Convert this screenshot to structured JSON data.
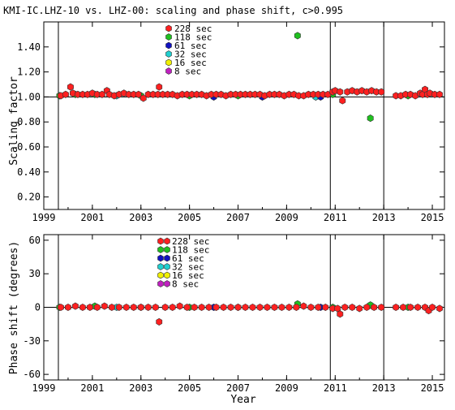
{
  "title": "KMI-IC.LHZ-10 vs. LHZ-00: scaling and phase shift, c>0.995",
  "legend": [
    {
      "label": "228 sec",
      "color": "#ff2020"
    },
    {
      "label": "118 sec",
      "color": "#20c020"
    },
    {
      "label": "61 sec",
      "color": "#1010c0"
    },
    {
      "label": "32 sec",
      "color": "#20d0d0"
    },
    {
      "label": "16 sec",
      "color": "#f0f000"
    },
    {
      "label": "8 sec",
      "color": "#c020c0"
    }
  ],
  "chart_data": [
    {
      "type": "scatter",
      "ylabel": "Scaling factor",
      "xlabel": "",
      "xlim": [
        1999,
        2015.5
      ],
      "ylim": [
        0.1,
        1.6
      ],
      "xticks": [
        "1999",
        "2001",
        "2003",
        "2005",
        "2007",
        "2009",
        "2011",
        "2013",
        "2015"
      ],
      "yticks": [
        "0.20",
        "0.40",
        "0.60",
        "0.80",
        "1.00",
        "1.20",
        "1.40"
      ],
      "yticks_values": [
        0.2,
        0.4,
        0.6,
        0.8,
        1.0,
        1.2,
        1.4
      ],
      "reference_line": 1.0,
      "vertical_lines": [
        1999.6,
        2010.8,
        2013.0
      ],
      "series": [
        {
          "name": "228 sec",
          "color": "#ff2020",
          "x": [
            1999.7,
            1999.9,
            2000.1,
            2000.2,
            2000.4,
            2000.6,
            2000.8,
            2001.0,
            2001.2,
            2001.4,
            2001.6,
            2001.7,
            2001.9,
            2002.1,
            2002.3,
            2002.5,
            2002.7,
            2002.9,
            2003.1,
            2003.3,
            2003.5,
            2003.7,
            2003.75,
            2003.9,
            2004.1,
            2004.3,
            2004.5,
            2004.7,
            2004.9,
            2005.1,
            2005.3,
            2005.5,
            2005.7,
            2005.9,
            2006.1,
            2006.3,
            2006.5,
            2006.7,
            2006.9,
            2007.1,
            2007.3,
            2007.5,
            2007.7,
            2007.9,
            2008.1,
            2008.3,
            2008.5,
            2008.7,
            2008.9,
            2009.1,
            2009.3,
            2009.5,
            2009.7,
            2009.9,
            2010.1,
            2010.3,
            2010.5,
            2010.7,
            2010.9,
            2011.0,
            2011.2,
            2011.3,
            2011.5,
            2011.7,
            2011.9,
            2012.1,
            2012.3,
            2012.5,
            2012.7,
            2012.9,
            2013.5,
            2013.7,
            2013.9,
            2014.1,
            2014.3,
            2014.5,
            2014.6,
            2014.7,
            2014.8,
            2014.9,
            2015.1,
            2015.3
          ],
          "y": [
            1.01,
            1.02,
            1.08,
            1.03,
            1.02,
            1.02,
            1.02,
            1.03,
            1.02,
            1.02,
            1.05,
            1.02,
            1.01,
            1.02,
            1.03,
            1.02,
            1.02,
            1.02,
            0.99,
            1.02,
            1.02,
            1.02,
            1.08,
            1.02,
            1.02,
            1.02,
            1.01,
            1.02,
            1.02,
            1.02,
            1.02,
            1.02,
            1.01,
            1.02,
            1.02,
            1.02,
            1.01,
            1.02,
            1.02,
            1.02,
            1.02,
            1.02,
            1.02,
            1.02,
            1.01,
            1.02,
            1.02,
            1.02,
            1.01,
            1.02,
            1.02,
            1.01,
            1.01,
            1.02,
            1.02,
            1.02,
            1.02,
            1.02,
            1.04,
            1.05,
            1.04,
            0.97,
            1.04,
            1.05,
            1.04,
            1.05,
            1.04,
            1.05,
            1.04,
            1.04,
            1.01,
            1.01,
            1.02,
            1.02,
            1.01,
            1.03,
            1.02,
            1.06,
            1.02,
            1.03,
            1.02,
            1.02
          ]
        },
        {
          "name": "118 sec",
          "color": "#20c020",
          "x": [
            1999.65,
            2000.3,
            2001.1,
            2003.0,
            2005.0,
            2007.0,
            2009.45,
            2010.9,
            2012.45,
            2014.0
          ],
          "y": [
            1.01,
            1.02,
            1.02,
            1.01,
            1.01,
            1.01,
            1.49,
            1.02,
            0.83,
            1.01
          ]
        },
        {
          "name": "61 sec",
          "color": "#1010c0",
          "x": [
            2006.0,
            2008.0,
            2010.4
          ],
          "y": [
            1.0,
            1.0,
            1.0
          ]
        },
        {
          "name": "32 sec",
          "color": "#20d0d0",
          "x": [
            2002.0,
            2010.2
          ],
          "y": [
            1.01,
            1.0
          ]
        },
        {
          "name": "16 sec",
          "color": "#f0f000",
          "x": [],
          "y": []
        },
        {
          "name": "8 sec",
          "color": "#c020c0",
          "x": [],
          "y": []
        }
      ]
    },
    {
      "type": "scatter",
      "ylabel": "Phase shift (degrees)",
      "xlabel": "Year",
      "xlim": [
        1999,
        2015.5
      ],
      "ylim": [
        -65,
        65
      ],
      "xticks": [
        "1999",
        "2001",
        "2003",
        "2005",
        "2007",
        "2009",
        "2011",
        "2013",
        "2015"
      ],
      "yticks": [
        "-60",
        "-30",
        "0",
        "30",
        "60"
      ],
      "yticks_values": [
        -60,
        -30,
        0,
        30,
        60
      ],
      "reference_line": 0,
      "vertical_lines": [
        1999.6,
        2010.8,
        2013.0
      ],
      "series": [
        {
          "name": "228 sec",
          "color": "#ff2020",
          "x": [
            1999.7,
            2000.0,
            2000.3,
            2000.6,
            2000.9,
            2001.2,
            2001.5,
            2001.8,
            2002.1,
            2002.4,
            2002.7,
            2003.0,
            2003.3,
            2003.6,
            2003.75,
            2004.0,
            2004.3,
            2004.6,
            2004.9,
            2005.2,
            2005.5,
            2005.8,
            2006.1,
            2006.4,
            2006.7,
            2007.0,
            2007.3,
            2007.6,
            2007.9,
            2008.2,
            2008.5,
            2008.8,
            2009.1,
            2009.4,
            2009.7,
            2010.0,
            2010.3,
            2010.6,
            2010.9,
            2011.1,
            2011.2,
            2011.4,
            2011.7,
            2012.0,
            2012.3,
            2012.6,
            2012.9,
            2013.5,
            2013.8,
            2014.1,
            2014.4,
            2014.7,
            2014.85,
            2015.0,
            2015.3
          ],
          "y": [
            0,
            0,
            1,
            0,
            0,
            0,
            1,
            0,
            0,
            0,
            0,
            0,
            0,
            0,
            -13,
            0,
            0,
            1,
            0,
            0,
            0,
            0,
            0,
            0,
            0,
            0,
            0,
            0,
            0,
            0,
            0,
            0,
            0,
            0,
            1,
            0,
            0,
            0,
            -1,
            -1,
            -6,
            0,
            0,
            -1,
            0,
            0,
            0,
            0,
            0,
            0,
            0,
            0,
            -3,
            0,
            -1
          ]
        },
        {
          "name": "118 sec",
          "color": "#20c020",
          "x": [
            1999.65,
            2001.1,
            2003.0,
            2005.0,
            2007.0,
            2009.45,
            2010.9,
            2012.45,
            2014.0
          ],
          "y": [
            0,
            1,
            0,
            0,
            0,
            3,
            0,
            2,
            0
          ]
        },
        {
          "name": "61 sec",
          "color": "#1010c0",
          "x": [
            2006.0,
            2010.4
          ],
          "y": [
            0,
            0
          ]
        },
        {
          "name": "32 sec",
          "color": "#20d0d0",
          "x": [
            2002.0
          ],
          "y": [
            0
          ]
        },
        {
          "name": "16 sec",
          "color": "#f0f000",
          "x": [],
          "y": []
        },
        {
          "name": "8 sec",
          "color": "#c020c0",
          "x": [],
          "y": []
        }
      ]
    }
  ]
}
